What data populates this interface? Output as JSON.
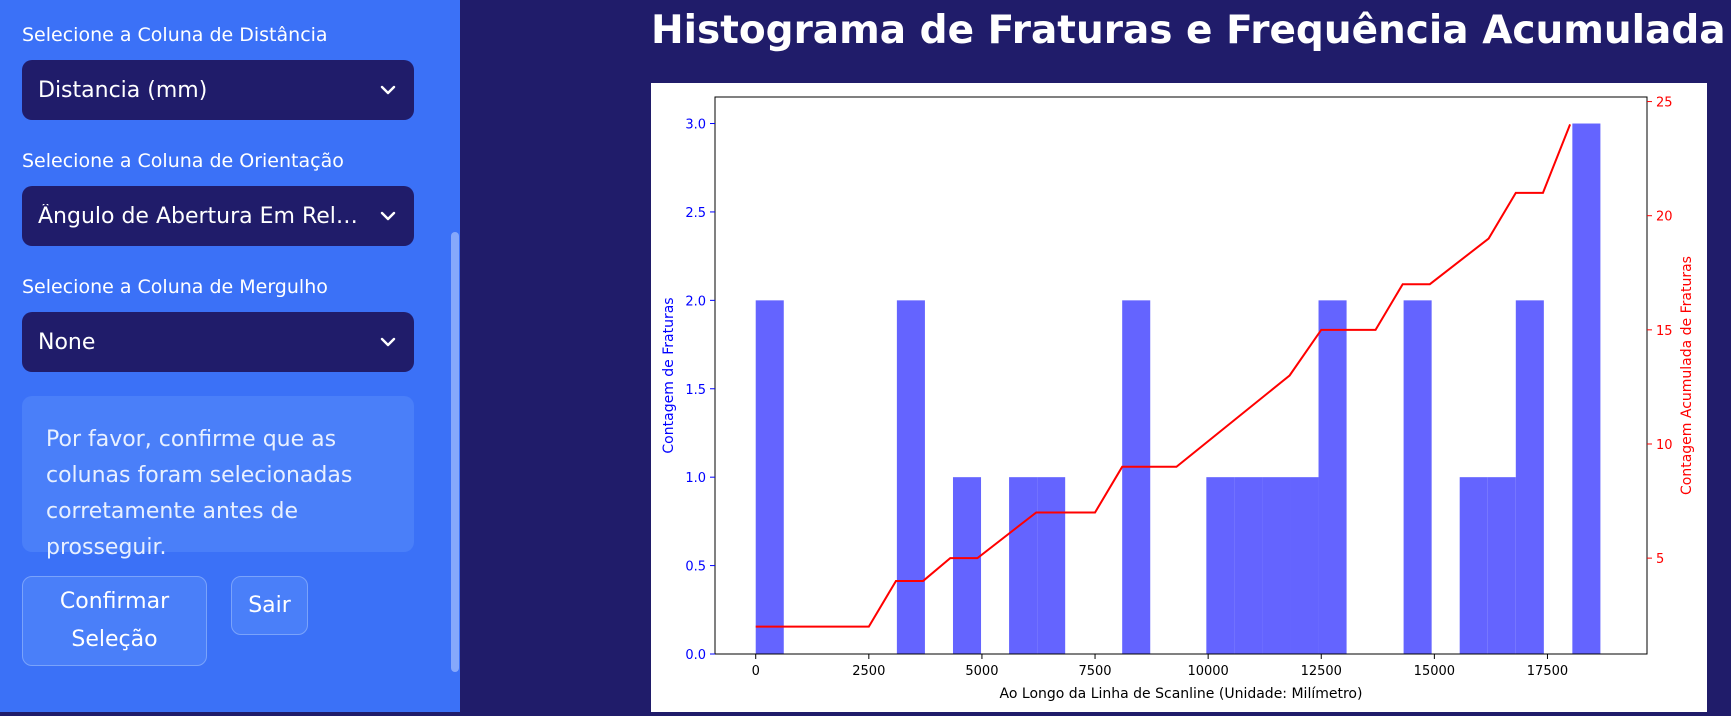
{
  "sidebar": {
    "distance": {
      "label": "Selecione a Coluna de Distância",
      "value": "Distancia (mm)"
    },
    "orientation": {
      "label": "Selecione a Coluna de Orientação",
      "value": "Ângulo de Abertura Em Rela…"
    },
    "dip": {
      "label": "Selecione a Coluna de Mergulho",
      "value": "None"
    },
    "info": "Por favor, confirme que as colunas foram selecionadas corretamente antes de prosseguir.",
    "confirm_label_line1": "Confirmar",
    "confirm_label_line2": "Seleção",
    "exit_label": "Sair"
  },
  "main": {
    "title": "Histograma de Fraturas e Frequência Acumulada"
  },
  "colors": {
    "bars": "#6464ff",
    "line": "#ff0000",
    "left_axis": "#0000ff",
    "right_axis": "#ff0000"
  },
  "chart_data": {
    "type": "bar",
    "title": "",
    "xlabel": "Ao Longo da Linha de Scanline (Unidade: Milímetro)",
    "ylabel": "Contagem de Fraturas",
    "y2label": "Contagem Acumulada de Fraturas",
    "xlim": [
      -900,
      19700
    ],
    "ylim": [
      0,
      3.15
    ],
    "y2lim": [
      0.8,
      25.2
    ],
    "x_ticks": [
      0,
      2500,
      5000,
      7500,
      10000,
      12500,
      15000,
      17500
    ],
    "y_ticks": [
      0.0,
      0.5,
      1.0,
      1.5,
      2.0,
      2.5,
      3.0
    ],
    "y2_ticks": [
      5,
      10,
      15,
      20,
      25
    ],
    "bin_width": 620,
    "bars": [
      {
        "x0": 0,
        "value": 2
      },
      {
        "x0": 3120,
        "value": 2
      },
      {
        "x0": 4360,
        "value": 1
      },
      {
        "x0": 5600,
        "value": 1
      },
      {
        "x0": 6220,
        "value": 1
      },
      {
        "x0": 8100,
        "value": 2
      },
      {
        "x0": 9960,
        "value": 1
      },
      {
        "x0": 10580,
        "value": 1
      },
      {
        "x0": 11200,
        "value": 1
      },
      {
        "x0": 11820,
        "value": 1
      },
      {
        "x0": 12440,
        "value": 2
      },
      {
        "x0": 14320,
        "value": 2
      },
      {
        "x0": 15560,
        "value": 1
      },
      {
        "x0": 16180,
        "value": 1
      },
      {
        "x0": 16800,
        "value": 2
      },
      {
        "x0": 18050,
        "value": 3
      }
    ],
    "series": [
      {
        "name": "",
        "x": [
          0,
          2500,
          3100,
          3700,
          4300,
          4900,
          6200,
          7500,
          8100,
          9300,
          11800,
          12500,
          13700,
          14300,
          14900,
          16200,
          16800,
          17400,
          18000
        ],
        "values": [
          2,
          2,
          4,
          4,
          5,
          5,
          7,
          7,
          9,
          9,
          13,
          15,
          15,
          17,
          17,
          19,
          21,
          21,
          24
        ]
      }
    ]
  }
}
